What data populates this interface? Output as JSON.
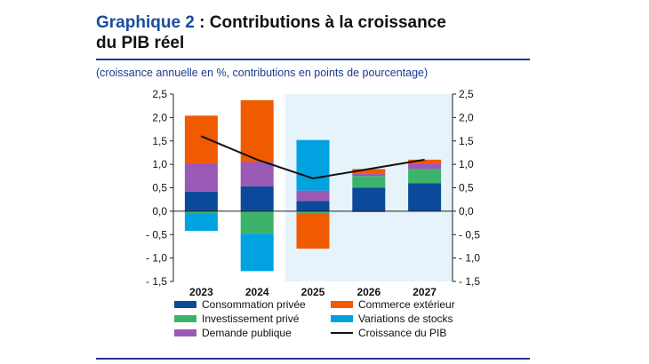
{
  "header": {
    "title_prefix": "Graphique 2",
    "title_sep": " : ",
    "title_line1": "Contributions à la croissance",
    "title_line2": "du PIB réel",
    "subtitle": "(croissance annuelle en %, contributions en points de pourcentage)"
  },
  "chart_data": {
    "type": "bar",
    "stacked": true,
    "categories": [
      "2023",
      "2024",
      "2025",
      "2026",
      "2027"
    ],
    "projection_from": "2025",
    "ylim": [
      -1.5,
      2.5
    ],
    "yticks": [
      "2,5",
      "2,0",
      "1,5",
      "1,0",
      "0,5",
      "0,0",
      "- 0,5",
      "- 1,0",
      "- 1,5"
    ],
    "ytick_values": [
      2.5,
      2.0,
      1.5,
      1.0,
      0.5,
      0.0,
      -0.5,
      -1.0,
      -1.5
    ],
    "series": [
      {
        "name": "Consommation privée",
        "color": "#0b4a9b",
        "values": [
          0.42,
          0.53,
          0.22,
          0.5,
          0.6
        ]
      },
      {
        "name": "Investissement privé",
        "color": "#3cb36a",
        "values": [
          -0.05,
          -0.48,
          -0.05,
          0.25,
          0.3
        ]
      },
      {
        "name": "Demande publique",
        "color": "#9b59b6",
        "values": [
          0.6,
          0.52,
          0.22,
          0.05,
          0.12
        ]
      },
      {
        "name": "Variations de stocks",
        "color": "#00a3e0",
        "values": [
          -0.37,
          -0.8,
          1.08,
          -0.02,
          -0.01
        ]
      },
      {
        "name": "Commerce extérieur",
        "color": "#f05a00",
        "values": [
          1.02,
          1.32,
          -0.75,
          0.1,
          0.08
        ]
      }
    ],
    "line": {
      "name": "Croissance du PIB",
      "color": "#111111",
      "values": [
        1.6,
        1.1,
        0.7,
        0.9,
        1.1
      ]
    },
    "legend": [
      {
        "label": "Consommation privée",
        "kind": "box",
        "color": "#0b4a9b"
      },
      {
        "label": "Commerce extérieur",
        "kind": "box",
        "color": "#f05a00"
      },
      {
        "label": "Investissement privé",
        "kind": "box",
        "color": "#3cb36a"
      },
      {
        "label": "Variations de stocks",
        "kind": "box",
        "color": "#00a3e0"
      },
      {
        "label": "Demande publique",
        "kind": "box",
        "color": "#9b59b6"
      },
      {
        "label": "Croissance du PIB",
        "kind": "line",
        "color": "#111111"
      }
    ]
  }
}
